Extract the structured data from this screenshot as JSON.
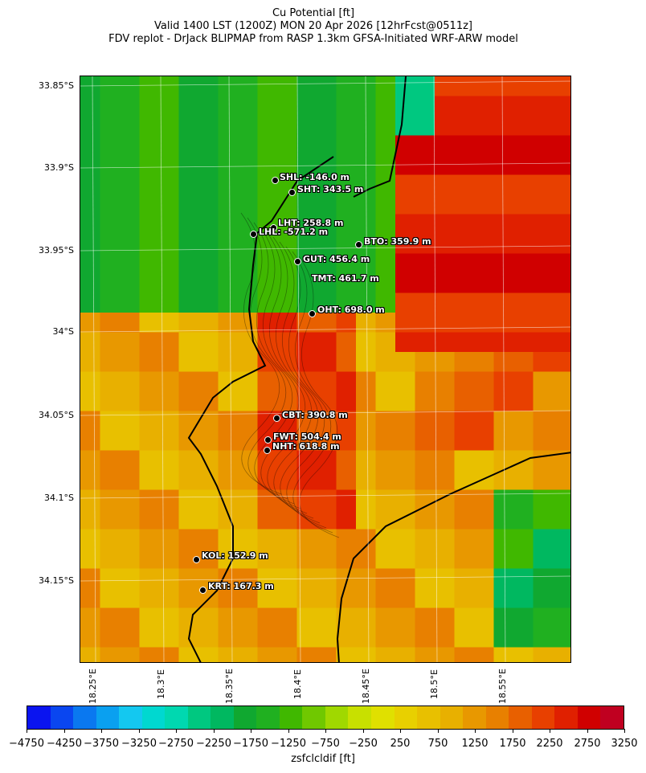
{
  "title": {
    "line1": "Cu Potential [ft]",
    "line2": "Valid 1400 LST (1200Z) MON 20 Apr 2026 [12hrFcst@0511z]",
    "line3": "FDV replot - DrJack BLIPMAP from RASP 1.3km GFSA-Initiated WRF-ARW model"
  },
  "lat_labels": [
    "33.85°S",
    "33.9°S",
    "33.95°S",
    "34°S",
    "34.05°S",
    "34.1°S",
    "34.15°S"
  ],
  "lon_labels": [
    "18.25°E",
    "18.3°E",
    "18.35°E",
    "18.4°E",
    "18.45°E",
    "18.5°E",
    "18.55°E"
  ],
  "stations": [
    {
      "label": "SHL: -146.0 m",
      "name": "SHL"
    },
    {
      "label": "SHT: 343.5 m",
      "name": "SHT"
    },
    {
      "label": "LHT: 258.8 m",
      "name": "LHT"
    },
    {
      "label": "LHL: -571.2 m",
      "name": "LHL"
    },
    {
      "label": "BTO: 359.9 m",
      "name": "BTO"
    },
    {
      "label": "GUT: 456.4 m",
      "name": "GUT"
    },
    {
      "label": "TMT: 461.7 m",
      "name": "TMT"
    },
    {
      "label": "OHT: 698.0 m",
      "name": "OHT"
    },
    {
      "label": "CBT: 390.8 m",
      "name": "CBT"
    },
    {
      "label": "FWT: 504.4 m",
      "name": "FWT"
    },
    {
      "label": "NHT: 618.8 m",
      "name": "NHT"
    },
    {
      "label": "KOL: 152.9 m",
      "name": "KOL"
    },
    {
      "label": "KRT: 167.3 m",
      "name": "KRT"
    }
  ],
  "colorbar": {
    "label": "zsfclcldif [ft]",
    "ticks": [
      "−4750",
      "−4250",
      "−3750",
      "−3250",
      "−2750",
      "−2250",
      "−1750",
      "−1250",
      "−750",
      "−250",
      "250",
      "750",
      "1250",
      "1750",
      "2250",
      "2750",
      "3250"
    ],
    "colors": [
      "#0a14f0",
      "#0a46f0",
      "#0a78f0",
      "#0aa0f0",
      "#14c8f0",
      "#00d8d0",
      "#00d8b0",
      "#00c880",
      "#00b860",
      "#10a830",
      "#20b020",
      "#40b800",
      "#70c800",
      "#a0d800",
      "#c8e000",
      "#e0e000",
      "#e8d000",
      "#e8c000",
      "#e8b000",
      "#e89800",
      "#e88000",
      "#e86000",
      "#e84000",
      "#e02000",
      "#d00000",
      "#c00020"
    ]
  }
}
